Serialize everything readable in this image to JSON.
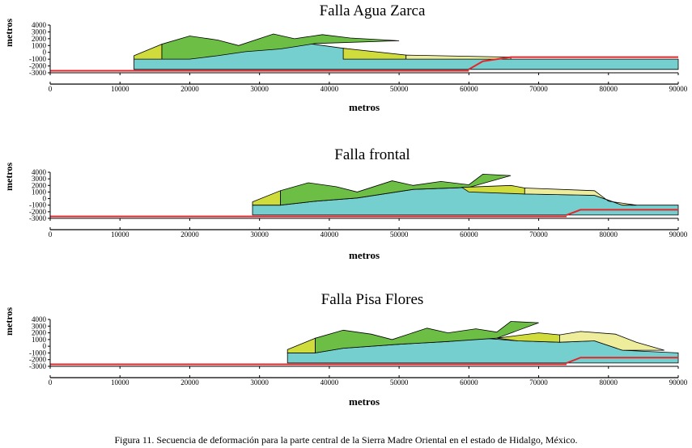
{
  "figure": {
    "caption": "Figura 11. Secuencia de deformación para la parte central de la Sierra Madre Oriental en el estado de Hidalgo, México."
  },
  "colors": {
    "green": "#6cbe45",
    "yellow_green": "#cfdc3c",
    "pale_yellow": "#eded9c",
    "cyan": "#76cfcf",
    "red": "#e2262a",
    "black": "#000000"
  },
  "chart_data": [
    {
      "type": "area",
      "title": "Falla Agua Zarca",
      "xlabel": "metros",
      "ylabel": "metros",
      "xlim": [
        0,
        90000
      ],
      "ylim": [
        -3000,
        4000
      ],
      "xticks": [
        "0",
        "10000",
        "20000",
        "30000",
        "40000",
        "50000",
        "60000",
        "70000",
        "80000",
        "90000"
      ],
      "yticks": [
        "4000",
        "3000",
        "2000",
        "1000",
        "0",
        "-1000",
        "-2000",
        "-3000"
      ],
      "polygons": [
        {
          "name": "basement-red-left",
          "fill": "red_line",
          "points": [
            [
              0,
              -2700
            ],
            [
              60000,
              -2700
            ]
          ]
        },
        {
          "name": "cyan-sheet",
          "fill": "cyan",
          "points": [
            [
              12000,
              -1000
            ],
            [
              12000,
              -2500
            ],
            [
              90000,
              -2500
            ],
            [
              90000,
              -1000
            ],
            [
              66000,
              -1000
            ],
            [
              51000,
              -700
            ],
            [
              42000,
              600
            ],
            [
              37000,
              1300
            ],
            [
              30000,
              1000
            ],
            [
              24000,
              200
            ],
            [
              19000,
              300
            ],
            [
              16000,
              -1000
            ]
          ]
        },
        {
          "name": "yellow-front",
          "fill": "yellow_green",
          "points": [
            [
              12000,
              -1000
            ],
            [
              16000,
              -1000
            ],
            [
              16000,
              1200
            ],
            [
              12000,
              -500
            ]
          ]
        },
        {
          "name": "green-main",
          "fill": "green",
          "points": [
            [
              16000,
              -1000
            ],
            [
              16000,
              1200
            ],
            [
              20000,
              2400
            ],
            [
              24000,
              1800
            ],
            [
              27000,
              1000
            ],
            [
              32000,
              2700
            ],
            [
              35000,
              2000
            ],
            [
              39000,
              2600
            ],
            [
              43000,
              2100
            ],
            [
              50000,
              1700
            ],
            [
              38000,
              1300
            ],
            [
              33000,
              500
            ],
            [
              28000,
              100
            ],
            [
              24000,
              -500
            ],
            [
              20000,
              -1000
            ]
          ]
        },
        {
          "name": "yellow-back",
          "fill": "yellow_green",
          "points": [
            [
              42000,
              -1000
            ],
            [
              42000,
              600
            ],
            [
              51000,
              -400
            ],
            [
              51000,
              -1000
            ]
          ]
        },
        {
          "name": "pale-flat",
          "fill": "pale_yellow",
          "points": [
            [
              51000,
              -1000
            ],
            [
              51000,
              -400
            ],
            [
              66000,
              -700
            ],
            [
              66000,
              -1000
            ]
          ]
        },
        {
          "name": "red-ramp",
          "fill": "red_line",
          "points": [
            [
              60000,
              -2500
            ],
            [
              62000,
              -1300
            ],
            [
              66000,
              -700
            ],
            [
              90000,
              -700
            ]
          ]
        }
      ]
    },
    {
      "type": "area",
      "title": "Falla frontal",
      "xlabel": "metros",
      "ylabel": "metros",
      "xlim": [
        0,
        90000
      ],
      "ylim": [
        -3000,
        4000
      ],
      "xticks": [
        "0",
        "10000",
        "20000",
        "30000",
        "40000",
        "50000",
        "60000",
        "70000",
        "80000",
        "90000"
      ],
      "yticks": [
        "4000",
        "3000",
        "2000",
        "1000",
        "0",
        "-1000",
        "-2000",
        "-3000"
      ],
      "polygons": [
        {
          "name": "basement-red-left",
          "fill": "red_line",
          "points": [
            [
              0,
              -2700
            ],
            [
              74000,
              -2700
            ]
          ]
        },
        {
          "name": "cyan-sheet",
          "fill": "cyan",
          "points": [
            [
              29000,
              -2500
            ],
            [
              29000,
              -1000
            ],
            [
              33000,
              -1000
            ],
            [
              38000,
              -400
            ],
            [
              44000,
              100
            ],
            [
              52000,
              1400
            ],
            [
              60000,
              1700
            ],
            [
              68000,
              700
            ],
            [
              78000,
              500
            ],
            [
              82000,
              -1000
            ],
            [
              90000,
              -1000
            ],
            [
              90000,
              -2500
            ]
          ]
        },
        {
          "name": "yellow-front",
          "fill": "yellow_green",
          "points": [
            [
              29000,
              -1000
            ],
            [
              33000,
              -1000
            ],
            [
              33000,
              1200
            ],
            [
              29000,
              -500
            ]
          ]
        },
        {
          "name": "green-main",
          "fill": "green",
          "points": [
            [
              33000,
              -1000
            ],
            [
              33000,
              1200
            ],
            [
              37000,
              2400
            ],
            [
              41000,
              1800
            ],
            [
              44000,
              1000
            ],
            [
              49000,
              2700
            ],
            [
              52000,
              2000
            ],
            [
              56000,
              2600
            ],
            [
              60000,
              2100
            ],
            [
              62000,
              3700
            ],
            [
              66000,
              3500
            ],
            [
              60000,
              1700
            ],
            [
              52000,
              1400
            ],
            [
              44000,
              100
            ],
            [
              38000,
              -400
            ]
          ]
        },
        {
          "name": "yellow-back",
          "fill": "yellow_green",
          "points": [
            [
              59000,
              1700
            ],
            [
              66000,
              2000
            ],
            [
              68000,
              1600
            ],
            [
              68000,
              700
            ],
            [
              60000,
              1000
            ]
          ]
        },
        {
          "name": "pale-flat",
          "fill": "pale_yellow",
          "points": [
            [
              68000,
              1600
            ],
            [
              78000,
              1200
            ],
            [
              80000,
              -400
            ],
            [
              84000,
              -1000
            ],
            [
              82000,
              -1000
            ],
            [
              78000,
              500
            ],
            [
              68000,
              700
            ]
          ]
        },
        {
          "name": "red-ramp",
          "fill": "red_line",
          "points": [
            [
              74000,
              -2500
            ],
            [
              76000,
              -1700
            ],
            [
              90000,
              -1700
            ]
          ]
        }
      ]
    },
    {
      "type": "area",
      "title": "Falla Pisa Flores",
      "xlabel": "metros",
      "ylabel": "metros",
      "xlim": [
        0,
        90000
      ],
      "ylim": [
        -3000,
        4000
      ],
      "xticks": [
        "0",
        "10000",
        "20000",
        "30000",
        "40000",
        "50000",
        "60000",
        "70000",
        "80000",
        "90000"
      ],
      "yticks": [
        "4000",
        "3000",
        "2000",
        "1000",
        "0",
        "-1000",
        "-2000",
        "-3000"
      ],
      "polygons": [
        {
          "name": "basement-red-left",
          "fill": "red_line",
          "points": [
            [
              0,
              -2700
            ],
            [
              74000,
              -2700
            ]
          ]
        },
        {
          "name": "cyan-sheet",
          "fill": "cyan",
          "points": [
            [
              34000,
              -2500
            ],
            [
              34000,
              -1000
            ],
            [
              38000,
              -1000
            ],
            [
              42000,
              -300
            ],
            [
              50000,
              300
            ],
            [
              57000,
              700
            ],
            [
              62000,
              1200
            ],
            [
              67000,
              800
            ],
            [
              73000,
              600
            ],
            [
              78000,
              800
            ],
            [
              82000,
              -600
            ],
            [
              90000,
              -1000
            ],
            [
              90000,
              -2500
            ]
          ]
        },
        {
          "name": "yellow-front",
          "fill": "yellow_green",
          "points": [
            [
              34000,
              -1000
            ],
            [
              38000,
              -1000
            ],
            [
              38000,
              1200
            ],
            [
              34000,
              -500
            ]
          ]
        },
        {
          "name": "green-main",
          "fill": "green",
          "points": [
            [
              38000,
              -1000
            ],
            [
              38000,
              1200
            ],
            [
              42000,
              2400
            ],
            [
              46000,
              1800
            ],
            [
              49000,
              1000
            ],
            [
              54000,
              2700
            ],
            [
              57000,
              2000
            ],
            [
              61000,
              2600
            ],
            [
              64000,
              2100
            ],
            [
              66000,
              3700
            ],
            [
              70000,
              3500
            ],
            [
              64000,
              1200
            ],
            [
              57000,
              700
            ],
            [
              50000,
              300
            ],
            [
              42000,
              -300
            ]
          ]
        },
        {
          "name": "yellow-back",
          "fill": "yellow_green",
          "points": [
            [
              64000,
              1200
            ],
            [
              70000,
              2000
            ],
            [
              73000,
              1700
            ],
            [
              73000,
              600
            ],
            [
              67000,
              800
            ]
          ]
        },
        {
          "name": "pale-flat",
          "fill": "pale_yellow",
          "points": [
            [
              73000,
              1700
            ],
            [
              76000,
              2200
            ],
            [
              81000,
              1800
            ],
            [
              84000,
              600
            ],
            [
              88000,
              -600
            ],
            [
              82000,
              -600
            ],
            [
              78000,
              800
            ],
            [
              73000,
              600
            ]
          ]
        },
        {
          "name": "red-ramp",
          "fill": "red_line",
          "points": [
            [
              74000,
              -2500
            ],
            [
              76000,
              -1700
            ],
            [
              90000,
              -1700
            ]
          ]
        }
      ]
    }
  ]
}
